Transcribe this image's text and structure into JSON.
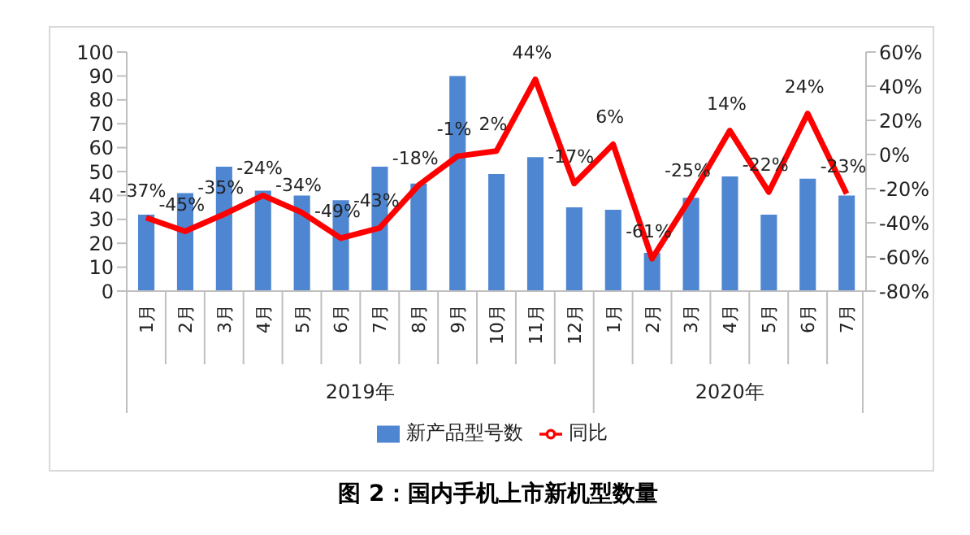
{
  "chart_data": {
    "type": "bar",
    "title": "图 2：国内手机上市新机型数量",
    "categories": [
      "1月",
      "2月",
      "3月",
      "4月",
      "5月",
      "6月",
      "7月",
      "8月",
      "9月",
      "10月",
      "11月",
      "12月",
      "1月",
      "2月",
      "3月",
      "4月",
      "5月",
      "6月",
      "7月"
    ],
    "annotations": [
      "2019年",
      "2020年"
    ],
    "series": [
      {
        "name": "新产品型号数",
        "color": "#4f86d1",
        "values": [
          32,
          41,
          52,
          42,
          40,
          38,
          52,
          45,
          90,
          49,
          56,
          35,
          34,
          16,
          39,
          48,
          32,
          47,
          40
        ]
      },
      {
        "name": "同比",
        "type": "line",
        "axis": "y2",
        "color": "#ff0000",
        "values": [
          -37,
          -45,
          -35,
          -24,
          -34,
          -49,
          -43,
          -18,
          -1,
          2,
          44,
          -17,
          6,
          -61,
          -25,
          14,
          -22,
          24,
          -23
        ],
        "value_labels": [
          "-37%",
          "-45%",
          "-35%",
          "-24%",
          "-34%",
          "-49%",
          "-43%",
          "-18%",
          "-1%",
          "2%",
          "44%",
          "-17%",
          "6%",
          "-61%",
          "-25%",
          "14%",
          "-22%",
          "24%",
          "-23%"
        ]
      }
    ],
    "ylim": [
      0,
      100
    ],
    "yticks": [
      0,
      10,
      20,
      30,
      40,
      50,
      60,
      70,
      80,
      90,
      100
    ],
    "y2lim": [
      -80,
      60
    ],
    "y2ticks": [
      {
        "value": -80,
        "label": "-80%"
      },
      {
        "value": -60,
        "label": "-60%"
      },
      {
        "value": -40,
        "label": "-40%"
      },
      {
        "value": -20,
        "label": "-20%"
      },
      {
        "value": 0,
        "label": "0%"
      },
      {
        "value": 20,
        "label": "20%"
      },
      {
        "value": 40,
        "label": "40%"
      },
      {
        "value": 60,
        "label": "60%"
      }
    ],
    "grid": false,
    "legend": "bottom",
    "marker": "none",
    "line_style": "solid"
  }
}
